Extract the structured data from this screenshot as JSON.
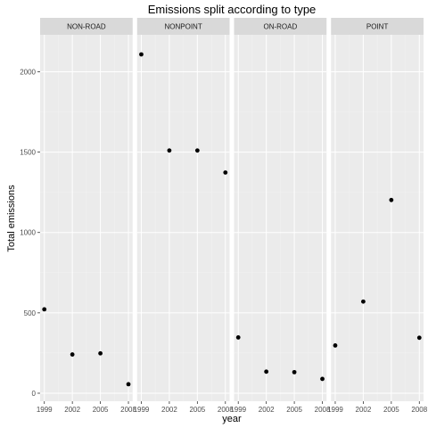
{
  "chart_data": {
    "type": "scatter",
    "title": "Emissions split according to type",
    "xlabel": "year",
    "ylabel": "Total emissions",
    "x_ticks": [
      1999,
      2002,
      2005,
      2008
    ],
    "y_ticks": [
      0,
      500,
      1000,
      1500,
      2000
    ],
    "ylim": [
      -50,
      2230
    ],
    "xlim": [
      1998.55,
      2008.45
    ],
    "grid": true,
    "facets": [
      {
        "label": "NON-ROAD",
        "points": [
          {
            "x": 1999,
            "y": 522
          },
          {
            "x": 2002,
            "y": 241
          },
          {
            "x": 2005,
            "y": 248
          },
          {
            "x": 2008,
            "y": 56
          }
        ]
      },
      {
        "label": "NONPOINT",
        "points": [
          {
            "x": 1999,
            "y": 2108
          },
          {
            "x": 2002,
            "y": 1510
          },
          {
            "x": 2005,
            "y": 1510
          },
          {
            "x": 2008,
            "y": 1373
          }
        ]
      },
      {
        "label": "ON-ROAD",
        "points": [
          {
            "x": 1999,
            "y": 347
          },
          {
            "x": 2002,
            "y": 134
          },
          {
            "x": 2005,
            "y": 131
          },
          {
            "x": 2008,
            "y": 89
          }
        ]
      },
      {
        "label": "POINT",
        "points": [
          {
            "x": 1999,
            "y": 297
          },
          {
            "x": 2002,
            "y": 570
          },
          {
            "x": 2005,
            "y": 1202
          },
          {
            "x": 2008,
            "y": 345
          }
        ]
      }
    ]
  },
  "colors": {
    "panel_bg": "#ebebeb",
    "strip_bg": "#d9d9d9",
    "grid_major": "#ffffff",
    "grid_minor": "#f2f2f2",
    "point": "#000000",
    "tick": "#333333"
  }
}
